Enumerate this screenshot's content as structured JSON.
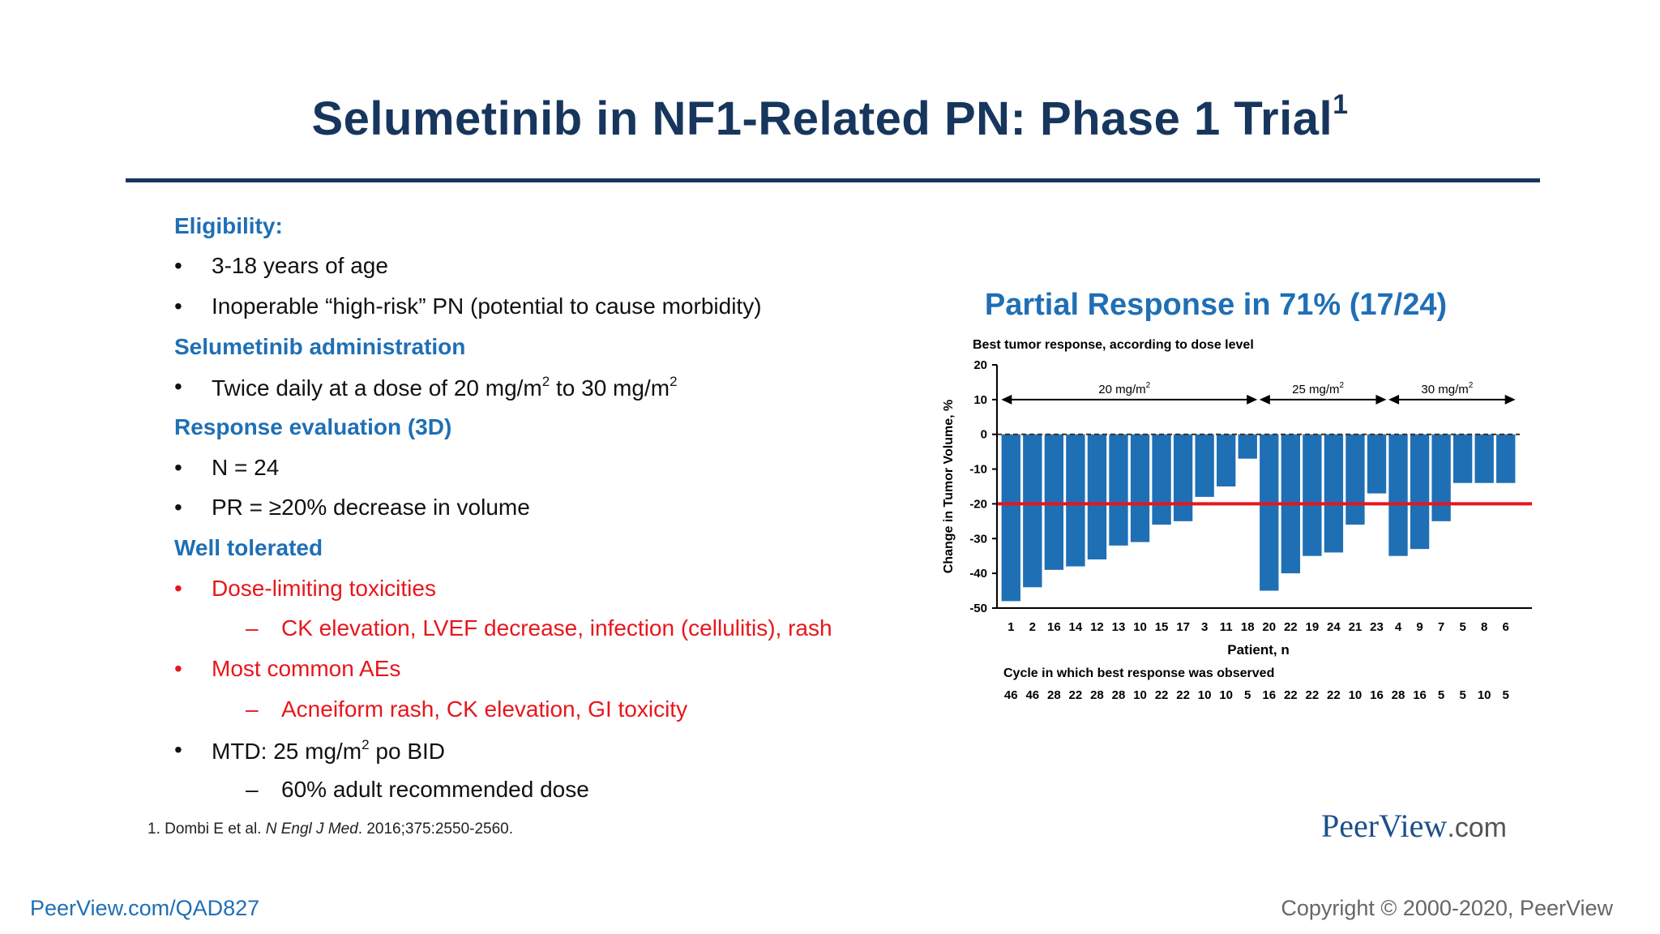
{
  "slide": {
    "title": "Selumetinib in NF1-Related PN:  Phase 1 Trial",
    "title_sup": "1",
    "reference": {
      "lead": "1. Dombi E et al. ",
      "journal": "N Engl J Med",
      "rest": ". 2016;375:2550-2560."
    },
    "brand": {
      "main": "PeerView",
      "suffix": ".com"
    },
    "footer_link": "PeerView.com/QAD827",
    "copyright": "Copyright © 2000-2020, PeerView"
  },
  "bullets": {
    "eligibility_head": "Eligibility:",
    "b1": "3-18 years of age",
    "b2": "Inoperable “high-risk” PN (potential to cause morbidity)",
    "admin_head": "Selumetinib administration",
    "b3_a": "Twice daily at a dose of 20 mg/m",
    "b3_sup1": "2",
    "b3_b": " to 30 mg/m",
    "b3_sup2": "2",
    "resp_head": "Response evaluation (3D)",
    "b4": "N = 24",
    "b5": "PR = ≥20% decrease in volume",
    "tol_head": "Well tolerated",
    "b6": "Dose-limiting toxicities",
    "b6s": "CK elevation, LVEF decrease, infection (cellulitis), rash",
    "b7": "Most common AEs",
    "b7s": "Acneiform rash, CK elevation, GI toxicity",
    "b8_a": "MTD:  25 mg/m",
    "b8_sup": "2",
    "b8_b": " po BID",
    "b8s": "60% adult recommended dose",
    "dot": "•",
    "dash": "–"
  },
  "chart_data": {
    "type": "bar",
    "heading": "Partial Response in 71% (17/24)",
    "title": "Best tumor response, according to dose level",
    "xlabel": "Patient, n",
    "ylabel": "Change in Tumor Volume, %",
    "ylim": [
      -50,
      20
    ],
    "yticks": [
      20,
      10,
      0,
      -10,
      -20,
      -30,
      -40,
      -50
    ],
    "threshold": -20,
    "categories": [
      "1",
      "2",
      "16",
      "14",
      "12",
      "13",
      "10",
      "15",
      "17",
      "3",
      "11",
      "18",
      "20",
      "22",
      "19",
      "24",
      "21",
      "23",
      "4",
      "9",
      "7",
      "5",
      "8",
      "6"
    ],
    "values": [
      -48,
      -44,
      -39,
      -38,
      -36,
      -32,
      -31,
      -26,
      -25,
      -18,
      -15,
      -7,
      -45,
      -40,
      -35,
      -34,
      -26,
      -17,
      -35,
      -33,
      -25,
      -14,
      -14,
      -14
    ],
    "cycle_label": "Cycle in which best response was observed",
    "cycles": [
      "46",
      "46",
      "28",
      "22",
      "28",
      "28",
      "10",
      "22",
      "22",
      "10",
      "10",
      "5",
      "16",
      "22",
      "22",
      "22",
      "10",
      "16",
      "28",
      "16",
      "5",
      "5",
      "10",
      "5"
    ],
    "dose_groups": [
      {
        "label": "20 mg/m",
        "sup": "2",
        "start": 0,
        "end": 11
      },
      {
        "label": "25 mg/m",
        "sup": "2",
        "start": 12,
        "end": 17
      },
      {
        "label": "30 mg/m",
        "sup": "2",
        "start": 18,
        "end": 23
      }
    ],
    "colors": {
      "bar": "#1f6fb5",
      "threshold": "#e8161b",
      "axis": "#000000"
    }
  }
}
